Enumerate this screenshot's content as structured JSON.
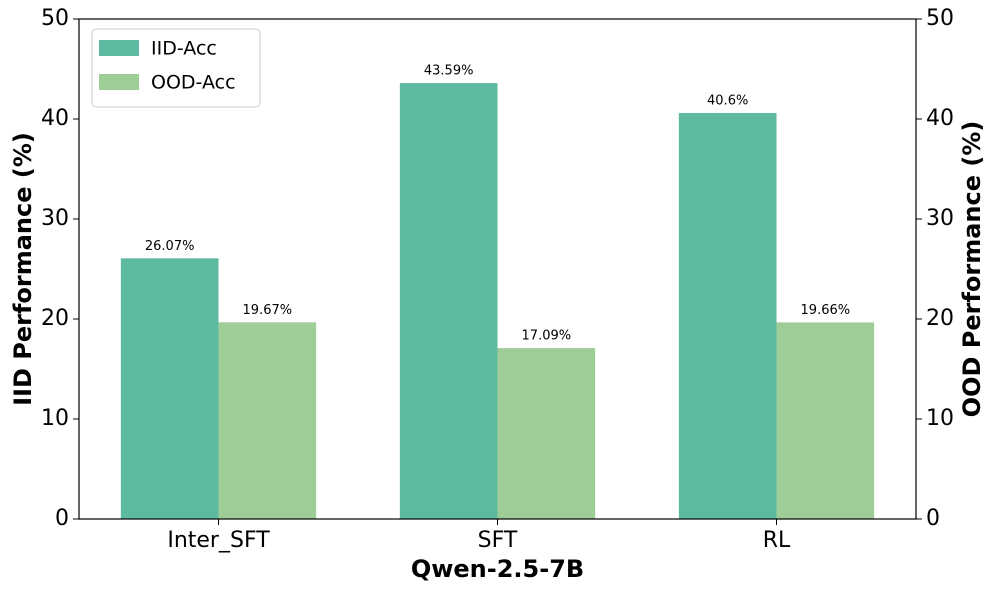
{
  "chart_data": {
    "type": "bar",
    "xlabel": "Qwen-2.5-7B",
    "ylabel": "IID Performance (%)",
    "y2label": "OOD Performance (%)",
    "categories": [
      "Inter_SFT",
      "SFT",
      "RL"
    ],
    "series": [
      {
        "name": "IID-Acc",
        "color": "#5dbaa0",
        "values": [
          26.07,
          43.59,
          40.6
        ],
        "value_labels": [
          "26.07%",
          "43.59%",
          "40.6%"
        ]
      },
      {
        "name": "OOD-Acc",
        "color": "#9ecd98",
        "axis": "y2",
        "values": [
          19.67,
          17.09,
          19.66
        ],
        "value_labels": [
          "19.67%",
          "17.09%",
          "19.66%"
        ]
      }
    ],
    "ylim": [
      0,
      50
    ],
    "yticks": [
      0,
      10,
      20,
      30,
      40,
      50
    ],
    "y2lim": [
      0,
      50
    ],
    "y2ticks": [
      0,
      10,
      20,
      30,
      40,
      50
    ],
    "legend": "upper left"
  }
}
